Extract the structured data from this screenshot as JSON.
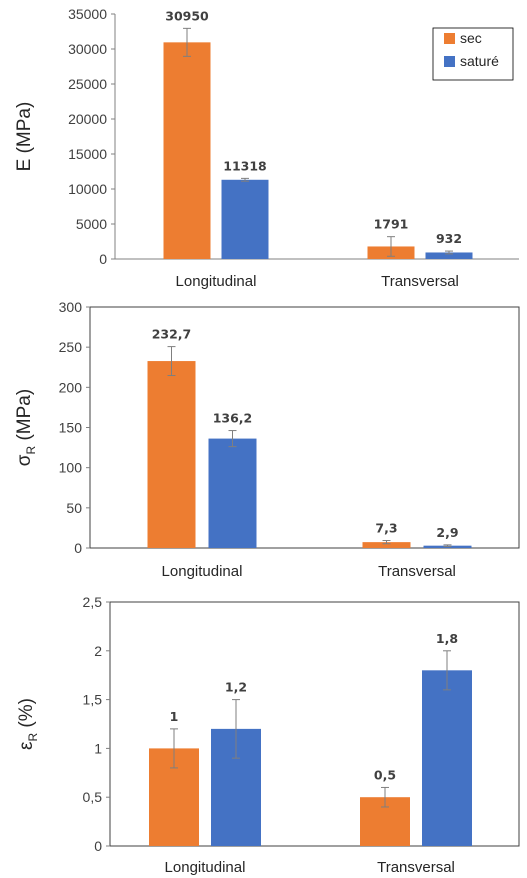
{
  "colors": {
    "sec": "#ED7D31",
    "sature": "#4472C4",
    "error_bar": "#7F7F7F",
    "axis": "#808080",
    "frame": "#404040"
  },
  "chart_data": [
    {
      "type": "bar",
      "ylabel": "E (MPa)",
      "categories": [
        "Longitudinal",
        "Transversal"
      ],
      "ylim": [
        0,
        35000
      ],
      "yticks": [
        0,
        5000,
        10000,
        15000,
        20000,
        25000,
        30000,
        35000
      ],
      "ytick_labels": [
        "0",
        "5000",
        "10000",
        "15000",
        "20000",
        "25000",
        "30000",
        "35000"
      ],
      "grid": false,
      "legend": {
        "placement": "top-right",
        "entries": [
          "sec",
          "saturé"
        ]
      },
      "series": [
        {
          "name": "sec",
          "color": "#ED7D31",
          "values": [
            30950,
            1791
          ],
          "labels": [
            "30950",
            "1791"
          ],
          "errors": [
            2000,
            1400
          ]
        },
        {
          "name": "saturé",
          "color": "#4472C4",
          "values": [
            11318,
            932
          ],
          "labels": [
            "11318",
            "932"
          ],
          "errors": [
            200,
            200
          ]
        }
      ]
    },
    {
      "type": "bar",
      "ylabel_main": "σ",
      "ylabel_sub": "R",
      "ylabel_unit": " (MPa)",
      "categories": [
        "Longitudinal",
        "Transversal"
      ],
      "ylim": [
        0,
        300
      ],
      "yticks": [
        0,
        50,
        100,
        150,
        200,
        250,
        300
      ],
      "ytick_labels": [
        "0",
        "50",
        "100",
        "150",
        "200",
        "250",
        "300"
      ],
      "grid": false,
      "series": [
        {
          "name": "sec",
          "color": "#ED7D31",
          "values": [
            232.7,
            7.3
          ],
          "labels": [
            "232,7",
            "7,3"
          ],
          "errors": [
            18,
            2
          ]
        },
        {
          "name": "saturé",
          "color": "#4472C4",
          "values": [
            136.2,
            2.9
          ],
          "labels": [
            "136,2",
            "2,9"
          ],
          "errors": [
            10,
            1
          ]
        }
      ]
    },
    {
      "type": "bar",
      "ylabel_main": "ε",
      "ylabel_sub": "R",
      "ylabel_unit": " (%)",
      "categories": [
        "Longitudinal",
        "Transversal"
      ],
      "ylim": [
        0,
        2.5
      ],
      "yticks": [
        0,
        0.5,
        1,
        1.5,
        2,
        2.5
      ],
      "ytick_labels": [
        "0",
        "0,5",
        "1",
        "1,5",
        "2",
        "2,5"
      ],
      "grid": false,
      "series": [
        {
          "name": "sec",
          "color": "#ED7D31",
          "values": [
            1,
            0.5
          ],
          "labels": [
            "1",
            "0,5"
          ],
          "errors": [
            0.2,
            0.1
          ]
        },
        {
          "name": "saturé",
          "color": "#4472C4",
          "values": [
            1.2,
            1.8
          ],
          "labels": [
            "1,2",
            "1,8"
          ],
          "errors": [
            0.3,
            0.2
          ]
        }
      ]
    }
  ]
}
